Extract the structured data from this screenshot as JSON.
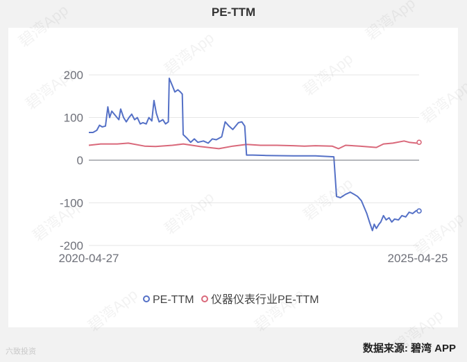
{
  "page": {
    "title": "PE-TTM",
    "source": "数据来源: 碧湾 APP",
    "watermark": "碧湾App",
    "corner_logo": "六致投资"
  },
  "colors": {
    "series1": "#5470c6",
    "series2": "#d9687a",
    "grid": "#e6e6e6",
    "axis_text": "#6e7079"
  },
  "chart_data": {
    "type": "line",
    "title": "PE-TTM",
    "xlabel": "",
    "ylabel": "",
    "x_start": "2020-04-27",
    "x_end": "2025-04-25",
    "x_tick_labels": [
      "2020-04-27",
      "2025-04-25"
    ],
    "ylim": [
      -200,
      200
    ],
    "y_ticks": [
      -200,
      -100,
      0,
      100,
      200
    ],
    "grid": true,
    "legend_position": "bottom",
    "series": [
      {
        "name": "PE-TTM",
        "points": [
          [
            "2020-04-27",
            65
          ],
          [
            "2020-05-20",
            65
          ],
          [
            "2020-06-10",
            70
          ],
          [
            "2020-06-25",
            82
          ],
          [
            "2020-07-10",
            78
          ],
          [
            "2020-07-28",
            80
          ],
          [
            "2020-08-10",
            125
          ],
          [
            "2020-08-20",
            100
          ],
          [
            "2020-09-01",
            115
          ],
          [
            "2020-09-20",
            105
          ],
          [
            "2020-10-10",
            95
          ],
          [
            "2020-10-20",
            120
          ],
          [
            "2020-11-05",
            100
          ],
          [
            "2020-11-20",
            90
          ],
          [
            "2020-12-05",
            100
          ],
          [
            "2020-12-20",
            108
          ],
          [
            "2021-01-05",
            95
          ],
          [
            "2021-01-20",
            100
          ],
          [
            "2021-02-05",
            85
          ],
          [
            "2021-02-20",
            88
          ],
          [
            "2021-03-10",
            85
          ],
          [
            "2021-03-25",
            100
          ],
          [
            "2021-04-10",
            92
          ],
          [
            "2021-04-22",
            140
          ],
          [
            "2021-05-05",
            110
          ],
          [
            "2021-05-20",
            90
          ],
          [
            "2021-06-10",
            95
          ],
          [
            "2021-06-25",
            85
          ],
          [
            "2021-07-10",
            90
          ],
          [
            "2021-07-15",
            192
          ],
          [
            "2021-08-01",
            175
          ],
          [
            "2021-08-15",
            160
          ],
          [
            "2021-09-01",
            165
          ],
          [
            "2021-09-15",
            160
          ],
          [
            "2021-09-25",
            155
          ],
          [
            "2021-09-30",
            60
          ],
          [
            "2021-10-20",
            52
          ],
          [
            "2021-11-10",
            42
          ],
          [
            "2021-12-01",
            50
          ],
          [
            "2021-12-20",
            42
          ],
          [
            "2022-01-20",
            45
          ],
          [
            "2022-02-15",
            40
          ],
          [
            "2022-03-10",
            50
          ],
          [
            "2022-04-01",
            48
          ],
          [
            "2022-05-01",
            55
          ],
          [
            "2022-05-20",
            90
          ],
          [
            "2022-06-10",
            80
          ],
          [
            "2022-07-01",
            72
          ],
          [
            "2022-08-01",
            88
          ],
          [
            "2022-08-20",
            90
          ],
          [
            "2022-09-05",
            80
          ],
          [
            "2022-09-15",
            12
          ],
          [
            "2022-10-20",
            12
          ],
          [
            "2023-01-01",
            11
          ],
          [
            "2023-06-01",
            10
          ],
          [
            "2023-10-01",
            10
          ],
          [
            "2024-01-10",
            8
          ],
          [
            "2024-01-25",
            -85
          ],
          [
            "2024-02-15",
            -88
          ],
          [
            "2024-03-15",
            -80
          ],
          [
            "2024-04-10",
            -75
          ],
          [
            "2024-05-01",
            -80
          ],
          [
            "2024-05-20",
            -85
          ],
          [
            "2024-06-10",
            -95
          ],
          [
            "2024-06-25",
            -110
          ],
          [
            "2024-07-10",
            -125
          ],
          [
            "2024-07-25",
            -145
          ],
          [
            "2024-08-10",
            -165
          ],
          [
            "2024-08-20",
            -150
          ],
          [
            "2024-09-01",
            -160
          ],
          [
            "2024-09-15",
            -150
          ],
          [
            "2024-09-25",
            -145
          ],
          [
            "2024-10-10",
            -130
          ],
          [
            "2024-10-25",
            -140
          ],
          [
            "2024-11-10",
            -135
          ],
          [
            "2024-11-25",
            -145
          ],
          [
            "2024-12-10",
            -138
          ],
          [
            "2025-01-01",
            -140
          ],
          [
            "2025-01-20",
            -130
          ],
          [
            "2025-02-10",
            -133
          ],
          [
            "2025-03-01",
            -122
          ],
          [
            "2025-03-20",
            -125
          ],
          [
            "2025-04-10",
            -118
          ],
          [
            "2025-04-25",
            -119
          ]
        ]
      },
      {
        "name": "仪器仪表行业PE-TTM",
        "points": [
          [
            "2020-04-27",
            35
          ],
          [
            "2020-07-01",
            38
          ],
          [
            "2020-10-01",
            38
          ],
          [
            "2020-12-01",
            40
          ],
          [
            "2021-03-01",
            33
          ],
          [
            "2021-05-01",
            32
          ],
          [
            "2021-08-01",
            35
          ],
          [
            "2021-10-01",
            38
          ],
          [
            "2022-01-01",
            32
          ],
          [
            "2022-04-15",
            27
          ],
          [
            "2022-07-01",
            33
          ],
          [
            "2022-09-15",
            37
          ],
          [
            "2022-12-01",
            35
          ],
          [
            "2023-03-01",
            35
          ],
          [
            "2023-06-01",
            34
          ],
          [
            "2023-08-01",
            33
          ],
          [
            "2023-10-01",
            34
          ],
          [
            "2024-01-01",
            33
          ],
          [
            "2024-02-05",
            27
          ],
          [
            "2024-03-15",
            35
          ],
          [
            "2024-06-01",
            33
          ],
          [
            "2024-09-01",
            30
          ],
          [
            "2024-10-10",
            38
          ],
          [
            "2024-12-01",
            40
          ],
          [
            "2025-02-01",
            45
          ],
          [
            "2025-03-01",
            42
          ],
          [
            "2025-04-10",
            40
          ],
          [
            "2025-04-25",
            42
          ]
        ]
      }
    ]
  }
}
